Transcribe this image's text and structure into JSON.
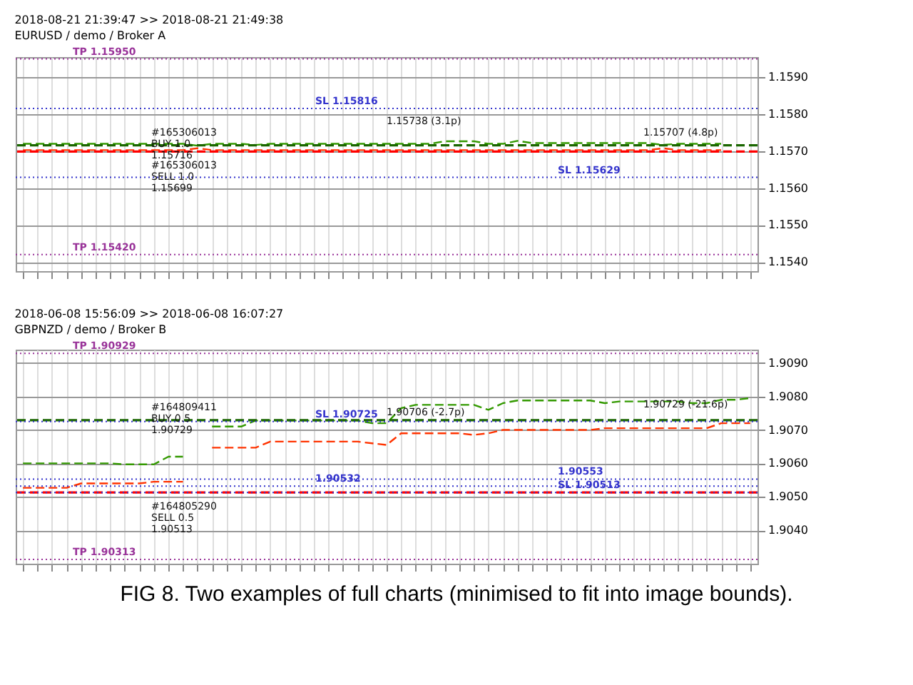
{
  "chart_data": [
    {
      "type": "line",
      "title": "2018-08-21 21:39:47 >> 2018-08-21 21:49:38",
      "subtitle": "EURUSD / demo / Broker A",
      "categories": [
        null,
        null,
        null,
        null,
        null,
        null,
        null,
        null,
        null,
        null,
        null,
        null,
        null,
        null,
        null,
        null,
        null,
        null,
        null,
        null,
        null,
        null,
        null,
        null,
        null,
        null,
        null,
        null,
        null,
        null,
        null,
        null,
        null,
        null,
        null,
        null,
        null,
        null,
        null,
        null,
        null,
        null,
        null,
        null,
        null,
        null,
        null,
        null,
        null,
        null,
        null
      ],
      "ylim": [
        1.15375,
        1.15955
      ],
      "line_style": "dashed",
      "yticks": [
        {
          "value": 1.154,
          "label": "1.1540"
        },
        {
          "value": 1.155,
          "label": "1.1550"
        },
        {
          "value": 1.156,
          "label": "1.1560"
        },
        {
          "value": 1.157,
          "label": "1.1570"
        },
        {
          "value": 1.158,
          "label": "1.1580"
        },
        {
          "value": 1.159,
          "label": "1.1590"
        }
      ],
      "grid": true,
      "tick_labels": "y",
      "series": [
        {
          "color": "#339900",
          "values": [
            1.1572,
            1.1572,
            1.1572,
            1.1572,
            1.1572,
            1.1572,
            1.1572,
            1.1572,
            1.1572,
            1.1572,
            1.1572,
            1.1572,
            1.15715,
            1.1572,
            1.1572,
            1.1572,
            1.15717,
            1.1572,
            1.1572,
            1.1572,
            1.1572,
            1.1572,
            1.1572,
            1.1572,
            1.1572,
            1.1572,
            1.1572,
            1.1572,
            1.1572,
            1.15727,
            1.15727,
            1.15727,
            1.1572,
            1.1572,
            1.15728,
            1.15722,
            1.15722,
            1.15722,
            1.15722,
            1.15722,
            1.15722,
            1.15722,
            1.15722,
            1.15722,
            1.15717,
            1.1572,
            1.1572,
            1.1572,
            1.1572,
            null,
            null
          ]
        },
        {
          "color": "#ff3300",
          "values": [
            1.15703,
            1.15703,
            1.15703,
            1.15703,
            1.15703,
            1.15703,
            1.15703,
            1.15703,
            1.15703,
            1.15703,
            1.15703,
            1.15703,
            1.15708,
            1.15703,
            1.15703,
            1.15703,
            1.15703,
            1.15703,
            1.15703,
            1.15703,
            1.15703,
            1.15703,
            1.15703,
            1.15703,
            1.15703,
            1.15703,
            1.15703,
            1.15703,
            1.15703,
            1.15703,
            1.15703,
            1.15703,
            1.15703,
            1.15703,
            1.15703,
            1.15703,
            1.15703,
            1.15703,
            1.15703,
            1.15703,
            1.15703,
            1.15703,
            1.15703,
            1.15703,
            1.15708,
            1.15703,
            1.15703,
            1.15703,
            1.15703,
            null,
            null
          ]
        }
      ],
      "ref_lines": [
        {
          "axis": "y",
          "value": 1.1595,
          "label": "TP 1.15950",
          "color": "#993399",
          "line_style": "dotted"
        },
        {
          "axis": "y",
          "value": 1.15816,
          "label": "SL 1.15816",
          "color": "#3333cc",
          "line_style": "dotted"
        },
        {
          "axis": "y",
          "value": 1.15716,
          "color": "#1a6600",
          "line_style": "dashed"
        },
        {
          "axis": "y",
          "value": 1.15699,
          "color": "#ff0000",
          "line_style": "dashed"
        },
        {
          "axis": "y",
          "value": 1.15629,
          "label": "SL 1.15629",
          "color": "#3333cc",
          "line_style": "dotted"
        },
        {
          "axis": "y",
          "value": 1.1542,
          "label": "TP 1.15420",
          "color": "#993399",
          "line_style": "dotted"
        }
      ],
      "annotations": [
        {
          "text": "#165306013\nSELL 1.0\n1.15699",
          "y": 1.15699
        },
        {
          "text": "#165306013\nBUY 1.0\n1.15716",
          "y": 1.15716
        },
        {
          "text": "1.15707 (4.8p)",
          "y": 1.15707
        },
        {
          "text": "1.15738 (3.1p)",
          "y": 1.15738
        }
      ]
    },
    {
      "type": "line",
      "title": "2018-06-08 15:56:09 >> 2018-06-08 16:07:27",
      "subtitle": "GBPNZD / demo / Broker B",
      "categories": [
        null,
        null,
        null,
        null,
        null,
        null,
        null,
        null,
        null,
        null,
        null,
        null,
        null,
        null,
        null,
        null,
        null,
        null,
        null,
        null,
        null,
        null,
        null,
        null,
        null,
        null,
        null,
        null,
        null,
        null,
        null,
        null,
        null,
        null,
        null,
        null,
        null,
        null,
        null,
        null,
        null,
        null,
        null,
        null,
        null,
        null,
        null,
        null,
        null,
        null,
        null
      ],
      "ylim": [
        1.903,
        1.9094
      ],
      "line_style": "dashed",
      "yticks": [
        {
          "value": 1.904,
          "label": "1.9040"
        },
        {
          "value": 1.905,
          "label": "1.9050"
        },
        {
          "value": 1.906,
          "label": "1.9060"
        },
        {
          "value": 1.907,
          "label": "1.9070"
        },
        {
          "value": 1.908,
          "label": "1.9080"
        },
        {
          "value": 1.909,
          "label": "1.9090"
        }
      ],
      "grid": true,
      "tick_labels": "y",
      "series": [
        {
          "color": "#339900",
          "values": [
            1.906,
            1.906,
            1.906,
            1.906,
            1.906,
            1.906,
            1.906,
            1.90597,
            1.90597,
            1.90597,
            1.9062,
            1.9062,
            null,
            1.9071,
            1.9071,
            1.9071,
            1.90728,
            1.90728,
            1.90728,
            1.90728,
            1.90728,
            1.90728,
            1.90728,
            1.90728,
            1.9072,
            1.9072,
            1.90765,
            1.90775,
            1.90775,
            1.90775,
            1.90775,
            1.90775,
            1.9076,
            1.9078,
            1.90788,
            1.90788,
            1.90788,
            1.90788,
            1.90788,
            1.90788,
            1.9078,
            1.90785,
            1.90785,
            1.90785,
            1.90785,
            1.90785,
            1.9078,
            1.9078,
            1.9079,
            1.9079,
            1.90795
          ]
        },
        {
          "color": "#ff3300",
          "values": [
            1.90527,
            1.90527,
            1.90527,
            1.90527,
            1.9054,
            1.9054,
            1.9054,
            1.9054,
            1.9054,
            1.90545,
            1.90545,
            1.90545,
            null,
            1.90647,
            1.90647,
            1.90647,
            1.90647,
            1.90665,
            1.90665,
            1.90665,
            1.90665,
            1.90665,
            1.90665,
            1.90665,
            1.9066,
            1.90655,
            1.9069,
            1.9069,
            1.9069,
            1.9069,
            1.9069,
            1.90685,
            1.9069,
            1.907,
            1.907,
            1.907,
            1.907,
            1.907,
            1.907,
            1.907,
            1.90705,
            1.90705,
            1.90705,
            1.90705,
            1.90705,
            1.90705,
            1.90705,
            1.90705,
            1.9072,
            1.9072,
            1.9072
          ]
        }
      ],
      "ref_lines": [
        {
          "axis": "y",
          "value": 1.90929,
          "label": "TP 1.90929",
          "color": "#993399",
          "line_style": "dotted"
        },
        {
          "axis": "y",
          "value": 1.90729,
          "color": "#1a6600",
          "line_style": "dashed"
        },
        {
          "axis": "y",
          "value": 1.90725,
          "label": "SL 1.90725",
          "color": "#3333cc",
          "line_style": "dotted"
        },
        {
          "axis": "y",
          "value": 1.90513,
          "color": "#ff0000",
          "line_style": "dashed"
        },
        {
          "axis": "y",
          "value": 1.90513,
          "label": "SL 1.90513",
          "color": "#3333cc",
          "line_style": "dotted"
        },
        {
          "axis": "y",
          "value": 1.90313,
          "label": "TP 1.90313",
          "color": "#993399",
          "line_style": "dotted"
        },
        {
          "axis": "y",
          "value": 1.90532,
          "label": "1.90532",
          "color": "#3333cc",
          "line_style": "dotted"
        },
        {
          "axis": "y",
          "value": 1.90553,
          "label": "1.90553",
          "color": "#3333cc",
          "line_style": "dotted"
        }
      ],
      "annotations": [
        {
          "text": "#164805290\nSELL 0.5\n1.90513",
          "y": 1.90513
        },
        {
          "text": "#164809411\nBUY 0.5\n1.90729",
          "y": 1.90729
        },
        {
          "text": "1.90729 (-21.6p)",
          "y": 1.90729
        },
        {
          "text": "1.90706 (-2.7p)",
          "y": 1.90706
        },
        "FIG 8. Two examples of full charts (minimised to fit into image bounds)."
      ]
    }
  ]
}
